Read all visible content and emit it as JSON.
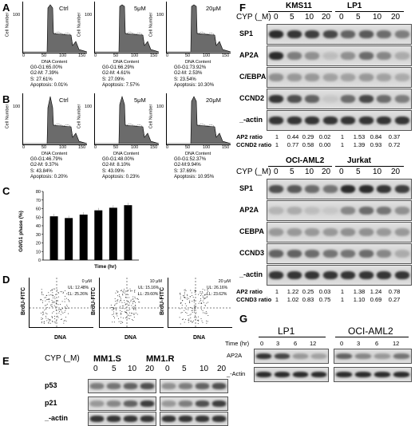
{
  "panels": {
    "A": "A",
    "B": "B",
    "C": "C",
    "D": "D",
    "E": "E",
    "F": "F",
    "G": "G"
  },
  "hist_axes": {
    "ylabel": "Cell Number",
    "xlabel": "DNA Content",
    "yticks": [
      "100"
    ],
    "xticks": [
      "0",
      "50",
      "100",
      "150"
    ]
  },
  "panelA": [
    {
      "title": "Ctrl",
      "stats": [
        "G0-G1:65.00%",
        "G2-M: 7.39%",
        "S: 27.61%",
        "Apoptosis: 0.01%"
      ]
    },
    {
      "title": "5μM",
      "stats": [
        "G0-G1:66.29%",
        "G2-M: 4.61%",
        "S: 27.09%",
        "Apoptosis: 7.57%"
      ]
    },
    {
      "title": "20μM",
      "stats": [
        "G0-G1:73.92%",
        "G2-M: 2.53%",
        "S: 23.54%",
        "Apoptosis: 10.30%"
      ]
    }
  ],
  "panelB": [
    {
      "title": "Ctrl",
      "stats": [
        "G0-G1:46.79%",
        "G2-M: 9.37%",
        "S: 43.84%",
        "Apoptosis: 0.20%"
      ]
    },
    {
      "title": "5μM",
      "stats": [
        "G0-G1:48.00%",
        "G2-M: 8.10%",
        "S: 43.09%",
        "Apoptosis: 0.23%"
      ]
    },
    {
      "title": "20μM",
      "stats": [
        "G0-G1:52.37%",
        "G2-M:9.94%",
        "S: 37.69%",
        "Apoptosis: 10.95%"
      ]
    }
  ],
  "panelD": {
    "ylabel": "BrdU-FITC",
    "xlabel": "DNA",
    "plots": [
      {
        "title": "0 μM",
        "ul": "UL: 12.48%",
        "ll": "LL: 25.26%"
      },
      {
        "title": "10 μM",
        "ul": "UL: 15.16%",
        "ll": "LL: 29.60%"
      },
      {
        "title": "20 μM",
        "ul": "UL: 26.16%",
        "ll": "LL: 23.62%"
      }
    ]
  },
  "panelE": {
    "cyp_label": "CYP (_M)",
    "groups": [
      "MM1.S",
      "MM1.R"
    ],
    "doses": [
      "0",
      "5",
      "10",
      "20"
    ],
    "rows": [
      "p53",
      "p21",
      "_-actin"
    ]
  },
  "panelF_top": {
    "cyp_label": "CYP (_M)",
    "groups": [
      "KMS11",
      "LP1"
    ],
    "doses": [
      "0",
      "5",
      "10",
      "20",
      "0",
      "5",
      "10",
      "20"
    ],
    "rows": [
      "SP1",
      "AP2A",
      "C/EBPA",
      "CCND2",
      "_-actin"
    ],
    "ratios": [
      {
        "label": "AP2 ratio",
        "values": [
          "1",
          "0.44",
          "0.29",
          "0.02",
          "1",
          "1.53",
          "0.84",
          "0.37"
        ]
      },
      {
        "label": "CCND2 ratio",
        "values": [
          "1",
          "0.77",
          "0.58",
          "0.00",
          "1",
          "1.39",
          "0.93",
          "0.72"
        ]
      }
    ]
  },
  "panelF_bottom": {
    "cyp_label": "CYP (_M)",
    "groups": [
      "OCI-AML2",
      "Jurkat"
    ],
    "doses": [
      "0",
      "5",
      "10",
      "20",
      "0",
      "5",
      "10",
      "20"
    ],
    "rows": [
      "SP1",
      "AP2A",
      "CEBPA",
      "CCND3",
      "_-actin"
    ],
    "ratios": [
      {
        "label": "AP2 ratio",
        "values": [
          "1",
          "1.22",
          "0.25",
          "0.03",
          "1",
          "1.38",
          "1.24",
          "0.78"
        ]
      },
      {
        "label": "CCND3 ratio",
        "values": [
          "1",
          "1.02",
          "0.83",
          "0.75",
          "1",
          "1.10",
          "0.69",
          "0.27"
        ]
      }
    ]
  },
  "panelG": {
    "groups": [
      "LP1",
      "OCI-AML2"
    ],
    "time_label": "Time (hr)",
    "times": [
      "0",
      "3",
      "6",
      "12",
      "0",
      "3",
      "6",
      "12"
    ],
    "rows": [
      "AP2A",
      "_-Actin"
    ]
  },
  "chart_data": {
    "type": "bar",
    "ylabel": "G0/G1 phase (%)",
    "xlabel": "Time (hr)",
    "yticks": [
      "0",
      "10",
      "20",
      "30",
      "40",
      "50",
      "60",
      "70",
      "80"
    ],
    "ylim": [
      0,
      80
    ],
    "values": [
      51,
      49,
      53,
      58,
      61,
      64
    ],
    "bar_color": "#000000"
  }
}
